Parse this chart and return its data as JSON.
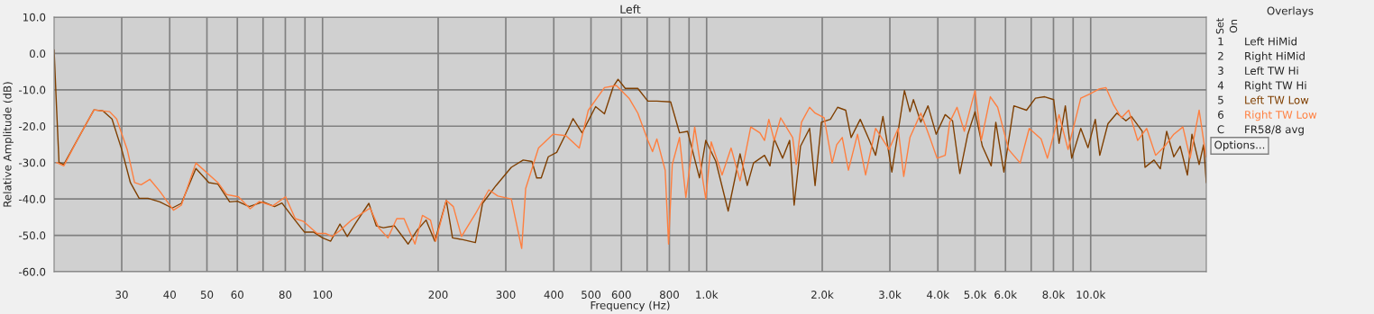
{
  "chart_data": {
    "type": "line",
    "title": "Left",
    "xlabel": "Frequency (Hz)",
    "ylabel": "Relative Amplitude (dB)",
    "log": "x",
    "grid": true,
    "legend": "right",
    "xlim": [
      20,
      20000
    ],
    "ylim": [
      -60,
      10
    ],
    "xticks": [
      30,
      40,
      50,
      60,
      {
        "value": 70,
        "label": null
      },
      80,
      {
        "value": 90,
        "label": null
      },
      100,
      200,
      300,
      400,
      500,
      600,
      {
        "value": 700,
        "label": null
      },
      800,
      {
        "value": 900,
        "label": null
      },
      {
        "value": 1000,
        "label": "1.0k"
      },
      {
        "value": 2000,
        "label": "2.0k"
      },
      {
        "value": 3000,
        "label": "3.0k"
      },
      {
        "value": 4000,
        "label": "4.0k"
      },
      {
        "value": 5000,
        "label": "5.0k"
      },
      {
        "value": 6000,
        "label": "6.0k"
      },
      {
        "value": 7000,
        "label": null
      },
      {
        "value": 8000,
        "label": "8.0k"
      },
      {
        "value": 9000,
        "label": null
      },
      {
        "value": 10000,
        "label": "10.0k"
      }
    ],
    "yticks": [
      {
        "value": 10,
        "label": "10.0"
      },
      {
        "value": 0,
        "label": "0.0"
      },
      {
        "value": -10,
        "label": "-10.0"
      },
      {
        "value": -20,
        "label": "-20.0"
      },
      {
        "value": -30,
        "label": "-30.0"
      },
      {
        "value": -40,
        "label": "-40.0"
      },
      {
        "value": -50,
        "label": "-50.0"
      },
      {
        "value": -60,
        "label": "-60.0"
      }
    ],
    "annotations": [
      "Overlays",
      "Set",
      "On",
      "1",
      "2",
      "3",
      "4",
      "5",
      "6",
      "C",
      "Left HiMid",
      "Right HiMid",
      "Left TW Hi",
      "Right TW Hi",
      "FR58/8 avg",
      "Options..."
    ],
    "series": [
      {
        "name": "Left TW Low",
        "color": "#7f3f00",
        "x": [
          20,
          20.3,
          20.6,
          21.2,
          23.2,
          25.4,
          26.8,
          28.3,
          30,
          31.6,
          33.3,
          35.1,
          37.7,
          40.6,
          42.9,
          46.8,
          50.6,
          53.4,
          57.3,
          60,
          64.4,
          70,
          75,
          78.4,
          83.6,
          89.7,
          94.7,
          100,
          105,
          111,
          116,
          122,
          132,
          138,
          144,
          154,
          167,
          176,
          186,
          196,
          210,
          218,
          232,
          250,
          261,
          283,
          310,
          333,
          351,
          361,
          371,
          387,
          407,
          437,
          449,
          474,
          514,
          542,
          572,
          588,
          614,
          662,
          703,
          742,
          806,
          850,
          892,
          958,
          995,
          1057,
          1138,
          1222,
          1276,
          1325,
          1415,
          1462,
          1500,
          1577,
          1645,
          1690,
          1756,
          1854,
          1916,
          1990,
          2100,
          2193,
          2302,
          2378,
          2512,
          2654,
          2754,
          2878,
          3036,
          3274,
          3384,
          3455,
          3612,
          3771,
          3959,
          4180,
          4368,
          4563,
          4786,
          5000,
          5224,
          5508,
          5662,
          5943,
          6310,
          6807,
          7179,
          7586,
          8011,
          8272,
          8590,
          8925,
          9423,
          9840,
          10280,
          10560,
          11090,
          11700,
          12350,
          12760,
          13620,
          13850,
          14620,
          15180,
          15770,
          16460,
          17100,
          17860,
          18350,
          19160,
          19680,
          20000
        ],
        "values": [
          1,
          -15,
          -30,
          -30.5,
          -23,
          -15.5,
          -15.8,
          -18,
          -26.4,
          -35.5,
          -39.8,
          -39.8,
          -40.8,
          -42.5,
          -41.2,
          -31.6,
          -35.5,
          -35.9,
          -40.8,
          -40.6,
          -42.1,
          -40.8,
          -42.1,
          -41.1,
          -45,
          -49.1,
          -49.1,
          -50.7,
          -51.6,
          -46.9,
          -50.3,
          -46.6,
          -41.2,
          -47.4,
          -47.9,
          -47.4,
          -52.4,
          -48.7,
          -45.8,
          -51.6,
          -40.4,
          -50.7,
          -51.2,
          -52,
          -41.2,
          -36.3,
          -31.3,
          -29.3,
          -29.7,
          -34.2,
          -34.2,
          -28.4,
          -27.2,
          -20.6,
          -17.9,
          -21.8,
          -14.6,
          -16.6,
          -9,
          -7.1,
          -9.6,
          -9.6,
          -13.1,
          -13.1,
          -13.3,
          -21.8,
          -21.4,
          -34.2,
          -23.9,
          -29.7,
          -43.3,
          -27.6,
          -36.3,
          -30.1,
          -28,
          -30.9,
          -23.5,
          -28.8,
          -23.9,
          -41.7,
          -25.5,
          -20.6,
          -36.3,
          -18.9,
          -18.1,
          -14.8,
          -15.6,
          -23.1,
          -18.1,
          -23.9,
          -28,
          -17.3,
          -32.6,
          -10.2,
          -16,
          -12.7,
          -18.9,
          -14.4,
          -22.2,
          -16.8,
          -18.5,
          -33,
          -22.2,
          -16,
          -25.5,
          -30.9,
          -18.9,
          -32.6,
          -14.4,
          -15.6,
          -12.3,
          -11.9,
          -12.7,
          -24.7,
          -14.4,
          -28.8,
          -20.6,
          -25.9,
          -18.1,
          -28,
          -19.3,
          -16.4,
          -18.5,
          -17.3,
          -21.4,
          -31.3,
          -29.3,
          -31.7,
          -21.4,
          -28.4,
          -25.5,
          -33.4,
          -22.2,
          -30.5,
          -25.1,
          -35.5
        ]
      },
      {
        "name": "Right TW Low",
        "color": "#ff7f3f",
        "x": [
          20.3,
          21.2,
          23.2,
          25.4,
          27.9,
          29.1,
          31,
          32.4,
          33.7,
          35.5,
          37.7,
          40.9,
          42.9,
          46.8,
          53.4,
          56.3,
          60.4,
          64.8,
          68.4,
          74.2,
          80.1,
          84.9,
          89.3,
          96.8,
          102,
          106,
          111,
          119,
          133,
          140,
          148,
          156,
          163,
          174,
          182,
          191,
          197,
          210,
          219,
          230,
          250,
          271,
          286,
          310,
          330,
          338,
          365,
          398,
          430,
          466,
          492,
          542,
          582,
          628,
          662,
          703,
          723,
          742,
          780,
          796,
          814,
          850,
          883,
          931,
          995,
          1028,
          1097,
          1158,
          1222,
          1303,
          1376,
          1415,
          1452,
          1500,
          1559,
          1675,
          1711,
          1766,
          1854,
          1916,
          2023,
          2123,
          2181,
          2255,
          2340,
          2471,
          2594,
          2754,
          2985,
          3153,
          3260,
          3384,
          3612,
          3811,
          3981,
          4180,
          4295,
          4487,
          4688,
          5000,
          5190,
          5479,
          5725,
          6112,
          6551,
          6918,
          7430,
          7714,
          8272,
          8730,
          9423,
          9954,
          10500,
          10960,
          11450,
          12020,
          12560,
          13250,
          13990,
          14760,
          15590,
          16460,
          17380,
          18150,
          19160,
          19680,
          19950
        ],
        "values": [
          -30,
          -30.9,
          -23,
          -15.5,
          -16,
          -18,
          -26.4,
          -35.5,
          -36.1,
          -34.6,
          -37.9,
          -43.1,
          -41.7,
          -30.1,
          -35.5,
          -38.8,
          -39.4,
          -42.7,
          -40.7,
          -41.9,
          -39.4,
          -45.4,
          -46.2,
          -49.5,
          -49.5,
          -50.3,
          -48.7,
          -45.8,
          -42.5,
          -47.9,
          -50.7,
          -45.4,
          -45.4,
          -52.4,
          -44.5,
          -45.8,
          -51.6,
          -40.4,
          -42.1,
          -50.3,
          -44.1,
          -37.5,
          -39.2,
          -40,
          -53.6,
          -37.1,
          -26,
          -22.2,
          -22.6,
          -26,
          -15.6,
          -9.4,
          -8.8,
          -12.3,
          -16.4,
          -23.9,
          -27,
          -23.5,
          -32.1,
          -52.4,
          -30.5,
          -23.1,
          -39.6,
          -20.2,
          -40,
          -24.3,
          -33.4,
          -26,
          -35,
          -20.2,
          -21.8,
          -23.9,
          -18.1,
          -23.9,
          -17.7,
          -23.1,
          -30.5,
          -18.9,
          -14.8,
          -16.4,
          -17.7,
          -30.1,
          -25.1,
          -23.1,
          -32.1,
          -22.2,
          -33.4,
          -20.6,
          -26.4,
          -20.6,
          -33.8,
          -23.1,
          -16.4,
          -23.1,
          -28.8,
          -28,
          -18.9,
          -14.8,
          -21.4,
          -10.2,
          -23.9,
          -11.9,
          -14.8,
          -26.4,
          -30.1,
          -20.6,
          -23.5,
          -28.8,
          -16.8,
          -26.4,
          -12.3,
          -11.1,
          -9.8,
          -9.4,
          -14,
          -17.7,
          -15.6,
          -23.9,
          -20.6,
          -28,
          -25.5,
          -22.2,
          -20.2,
          -28.8,
          -15.6,
          -23.9,
          -28.4
        ]
      }
    ]
  }
}
